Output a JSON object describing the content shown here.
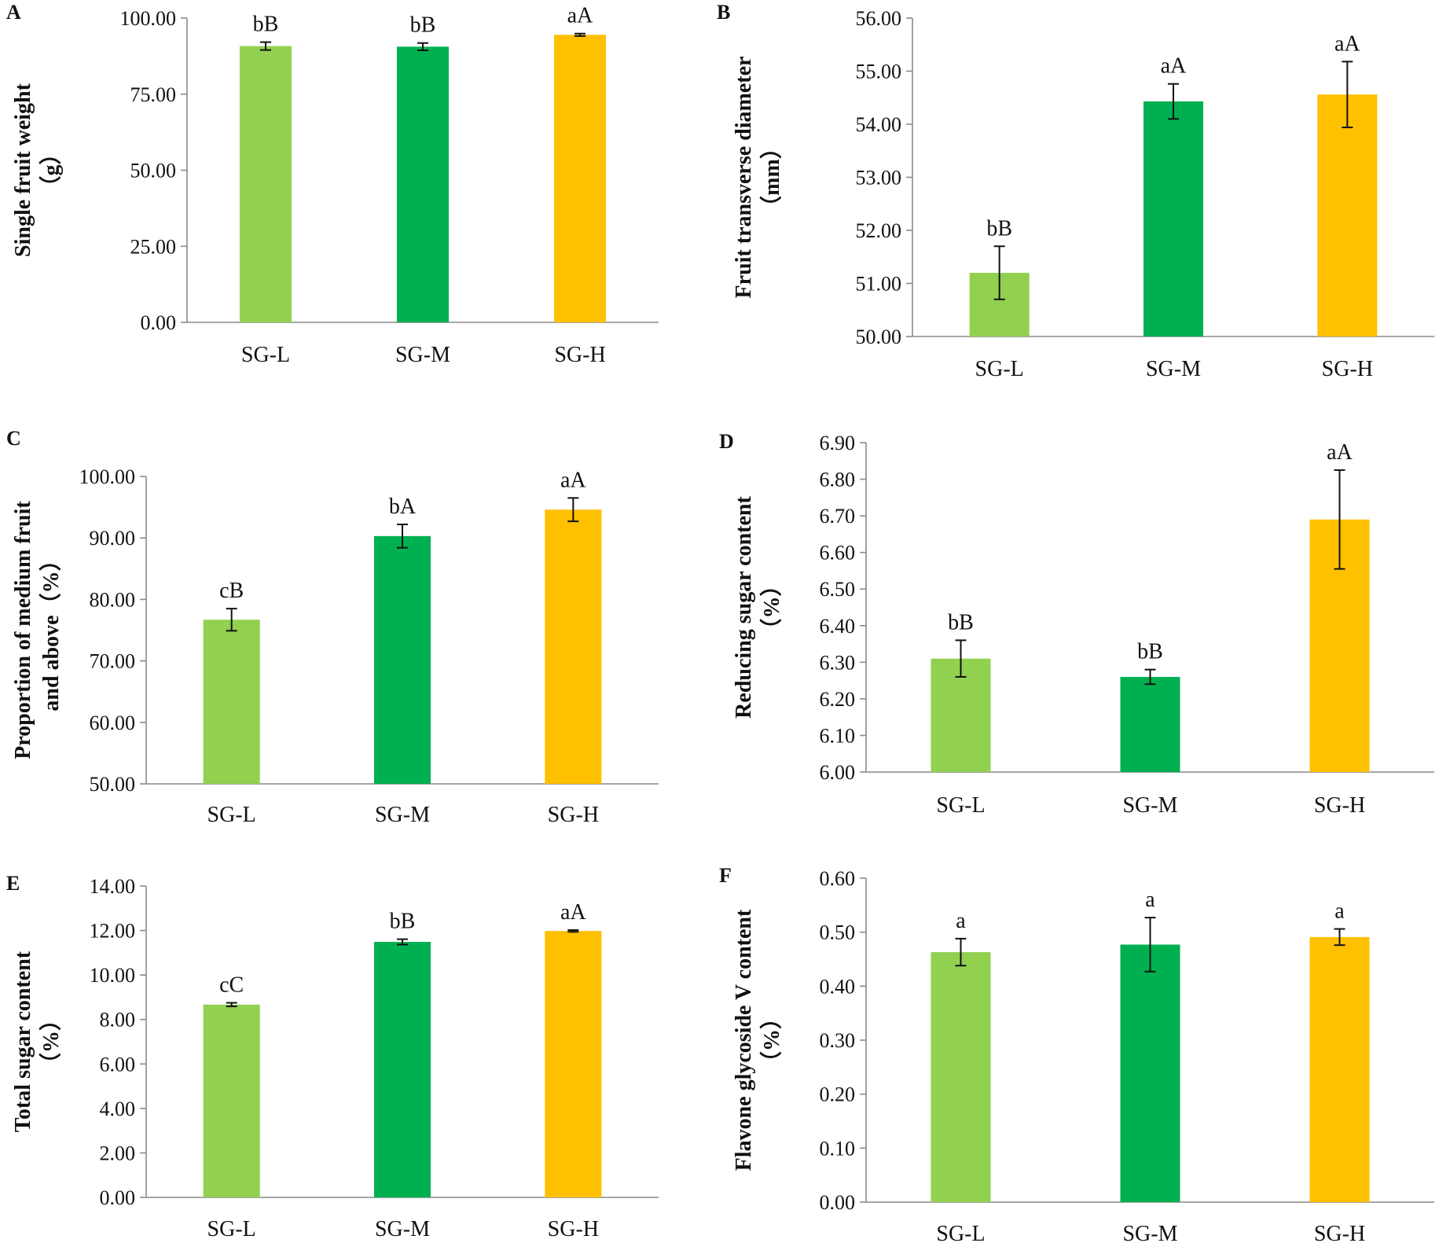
{
  "colors": {
    "SG-L": "#92d050",
    "SG-M": "#00b050",
    "SG-H": "#ffc000"
  },
  "chart_data": [
    {
      "type": "bar",
      "panel": "A",
      "categories": [
        "SG-L",
        "SG-M",
        "SG-H"
      ],
      "values": [
        90.8,
        90.6,
        94.5
      ],
      "errors": [
        1.3,
        1.2,
        0.4
      ],
      "significance": [
        "bB",
        "bB",
        "aA"
      ],
      "ylabel": [
        "Single fruit weight",
        "（g）"
      ],
      "ylim": [
        0,
        100
      ],
      "yticks": [
        "0.00",
        "25.00",
        "50.00",
        "75.00",
        "100.00"
      ]
    },
    {
      "type": "bar",
      "panel": "B",
      "categories": [
        "SG-L",
        "SG-M",
        "SG-H"
      ],
      "values": [
        51.2,
        54.43,
        54.56
      ],
      "errors": [
        0.5,
        0.33,
        0.62
      ],
      "significance": [
        "bB",
        "aA",
        "aA"
      ],
      "ylabel": [
        "Fruit transverse diameter",
        "（mm）"
      ],
      "ylim": [
        50,
        56
      ],
      "yticks": [
        "50.00",
        "51.00",
        "52.00",
        "53.00",
        "54.00",
        "55.00",
        "56.00"
      ]
    },
    {
      "type": "bar",
      "panel": "C",
      "categories": [
        "SG-L",
        "SG-M",
        "SG-H"
      ],
      "values": [
        76.7,
        90.3,
        94.6
      ],
      "errors": [
        1.8,
        1.9,
        1.9
      ],
      "significance": [
        "cB",
        "bA",
        "aA"
      ],
      "ylabel": [
        "Proportion of medium fruit",
        "and above（%）"
      ],
      "ylim": [
        50,
        100
      ],
      "yticks": [
        "50.00",
        "60.00",
        "70.00",
        "80.00",
        "90.00",
        "100.00"
      ]
    },
    {
      "type": "bar",
      "panel": "D",
      "categories": [
        "SG-L",
        "SG-M",
        "SG-H"
      ],
      "values": [
        6.31,
        6.26,
        6.69
      ],
      "errors": [
        0.05,
        0.02,
        0.135
      ],
      "significance": [
        "bB",
        "bB",
        "aA"
      ],
      "ylabel": [
        "Reducing sugar content",
        "（%）"
      ],
      "ylim": [
        6.0,
        6.9
      ],
      "yticks": [
        "6.00",
        "6.10",
        "6.20",
        "6.30",
        "6.40",
        "6.50",
        "6.60",
        "6.70",
        "6.80",
        "6.90"
      ]
    },
    {
      "type": "bar",
      "panel": "E",
      "categories": [
        "SG-L",
        "SG-M",
        "SG-H"
      ],
      "values": [
        8.67,
        11.49,
        11.98
      ],
      "errors": [
        0.08,
        0.12,
        0.04
      ],
      "significance": [
        "cC",
        "bB",
        "aA"
      ],
      "ylabel": [
        "Total sugar content",
        "（%）"
      ],
      "ylim": [
        0,
        14
      ],
      "yticks": [
        "0.00",
        "2.00",
        "4.00",
        "6.00",
        "8.00",
        "10.00",
        "12.00",
        "14.00"
      ]
    },
    {
      "type": "bar",
      "panel": "F",
      "categories": [
        "SG-L",
        "SG-M",
        "SG-H"
      ],
      "values": [
        0.463,
        0.477,
        0.491
      ],
      "errors": [
        0.025,
        0.05,
        0.015
      ],
      "significance": [
        "a",
        "a",
        "a"
      ],
      "ylabel": [
        "Flavone glycoside V content",
        "（%）"
      ],
      "ylim": [
        0,
        0.6
      ],
      "yticks": [
        "0.00",
        "0.10",
        "0.20",
        "0.30",
        "0.40",
        "0.50",
        "0.60"
      ]
    }
  ]
}
